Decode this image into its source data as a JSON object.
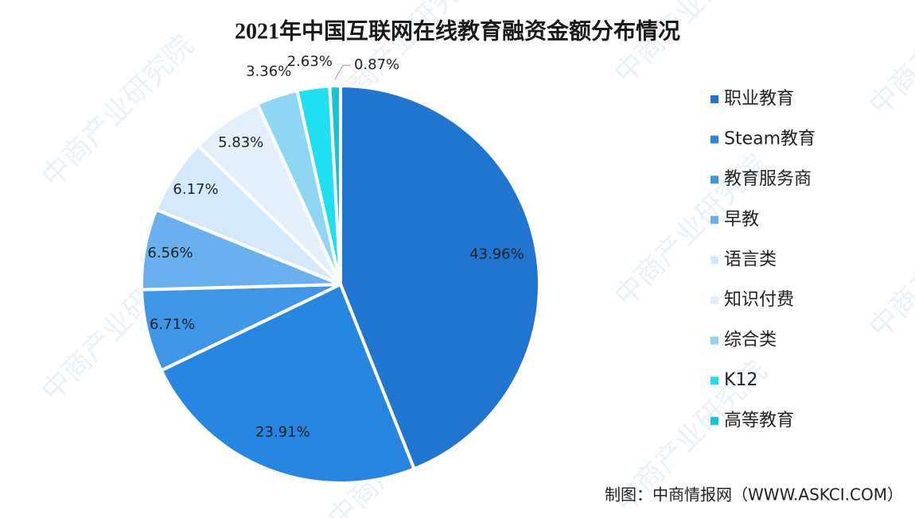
{
  "chart_data": {
    "type": "pie",
    "title": "2021年中国互联网在线教育融资金额分布情况",
    "categories": [
      "职业教育",
      "Steam教育",
      "教育服务商",
      "早教",
      "语言类",
      "知识付费",
      "综合类",
      "K12",
      "高等教育"
    ],
    "values": [
      43.96,
      23.91,
      6.71,
      6.56,
      6.17,
      5.83,
      3.36,
      2.63,
      0.87
    ],
    "value_labels": [
      "43.96%",
      "23.91%",
      "6.71%",
      "6.56%",
      "6.17%",
      "5.83%",
      "3.36%",
      "2.63%",
      "0.87%"
    ],
    "colors": [
      "#1f75cf",
      "#2886e3",
      "#3f96e8",
      "#6ab0ef",
      "#d5e9fb",
      "#e3f0fc",
      "#8ed6f4",
      "#1ee0f0",
      "#17c4d6"
    ],
    "legend": "right",
    "source": "制图：中商情报网（WWW.ASKCI.COM）",
    "watermark": "中商产业研究院"
  }
}
